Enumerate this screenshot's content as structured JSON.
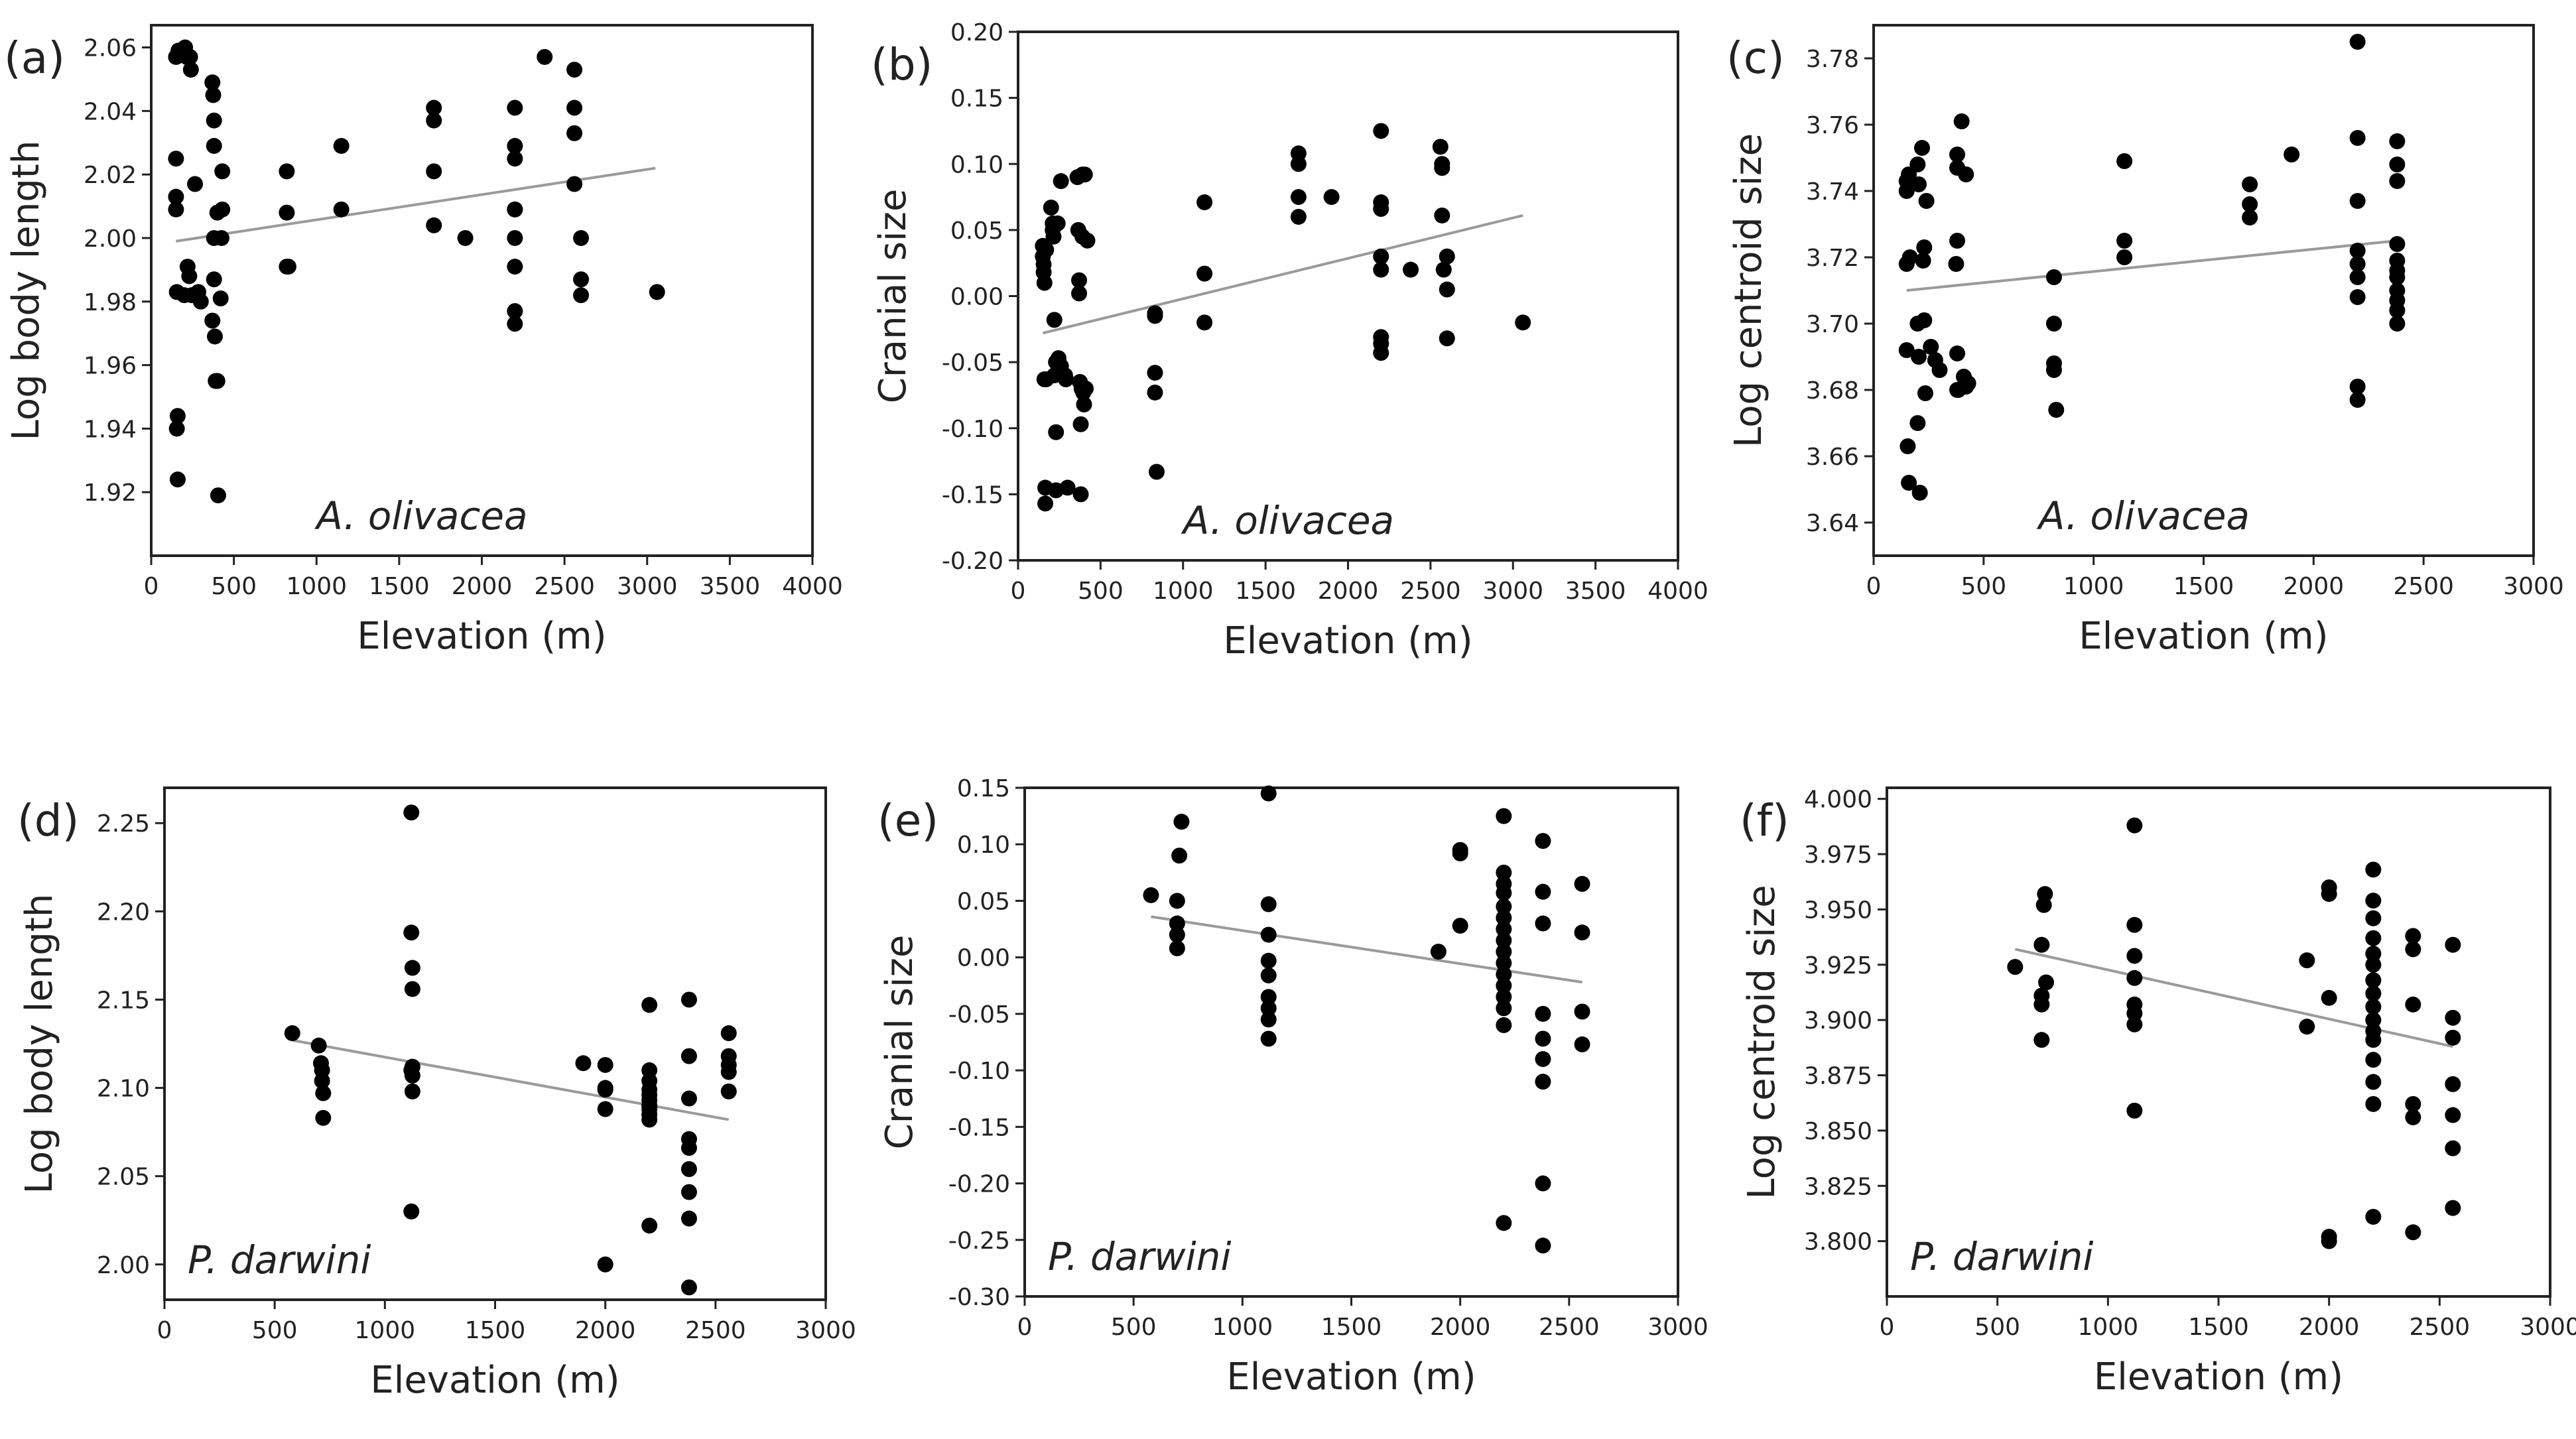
{
  "chart_data": [
    {
      "type": "scatter",
      "panel_label": "(a)",
      "species_label": "A. olivacea",
      "xlabel": "Elevation (m)",
      "ylabel": "Log body length",
      "xlim": [
        0,
        4000
      ],
      "ylim": [
        1.9,
        2.067
      ],
      "xticks": [
        0,
        500,
        1000,
        1500,
        2000,
        2500,
        3000,
        3500,
        4000
      ],
      "xtick_labels": [
        "0",
        "500",
        "1000",
        "1500",
        "2000",
        "2500",
        "3000",
        "3500",
        "4000"
      ],
      "yticks": [
        1.92,
        1.94,
        1.96,
        1.98,
        2.0,
        2.02,
        2.04,
        2.06
      ],
      "ytick_labels": [
        "1.92",
        "1.94",
        "1.96",
        "1.98",
        "2.00",
        "2.02",
        "2.04",
        "2.06"
      ],
      "trend": {
        "x": [
          150,
          3050
        ],
        "y": [
          1.999,
          2.022
        ]
      },
      "x": [
        150,
        150,
        150,
        150,
        155,
        160,
        155,
        160,
        165,
        205,
        215,
        240,
        220,
        230,
        200,
        265,
        235,
        245,
        285,
        300,
        370,
        375,
        380,
        380,
        380,
        380,
        370,
        385,
        390,
        400,
        400,
        405,
        430,
        430,
        425,
        420,
        820,
        820,
        820,
        830,
        1150,
        1150,
        1710,
        1710,
        1710,
        1710,
        1900,
        2200,
        2200,
        2200,
        2200,
        2200,
        2200,
        2200,
        2200,
        2200,
        2380,
        2560,
        2560,
        2560,
        2560,
        2600,
        2600,
        2600,
        3060
      ],
      "y": [
        2.057,
        2.025,
        2.013,
        2.009,
        1.983,
        1.944,
        1.94,
        1.924,
        2.059,
        2.06,
        2.057,
        2.053,
        1.991,
        1.988,
        1.982,
        2.017,
        2.057,
        1.982,
        1.983,
        1.98,
        2.049,
        2.045,
        2.037,
        2.029,
        2.0,
        1.987,
        1.974,
        1.969,
        1.955,
        2.008,
        1.955,
        1.919,
        2.021,
        2.009,
        2.0,
        1.981,
        2.021,
        2.008,
        1.991,
        1.991,
        2.029,
        2.009,
        2.041,
        2.037,
        2.021,
        2.004,
        2.0,
        2.041,
        2.029,
        2.025,
        2.009,
        2.0,
        1.991,
        1.977,
        1.973,
        2.009,
        2.057,
        2.053,
        2.041,
        2.033,
        2.017,
        2.0,
        1.987,
        1.982,
        1.983
      ]
    },
    {
      "type": "scatter",
      "panel_label": "(b)",
      "species_label": "A. olivacea",
      "xlabel": "Elevation (m)",
      "ylabel": "Cranial size",
      "xlim": [
        0,
        4000
      ],
      "ylim": [
        -0.2,
        0.2
      ],
      "xticks": [
        0,
        500,
        1000,
        1500,
        2000,
        2500,
        3000,
        3500,
        4000
      ],
      "xtick_labels": [
        "0",
        "500",
        "1000",
        "1500",
        "2000",
        "2500",
        "3000",
        "3500",
        "4000"
      ],
      "yticks": [
        -0.2,
        -0.15,
        -0.1,
        -0.05,
        0,
        0.05,
        0.1,
        0.15,
        0.2
      ],
      "ytick_labels": [
        "-0.20",
        "-0.15",
        "-0.10",
        "-0.05",
        "0.00",
        "0.05",
        "0.10",
        "0.15",
        "0.20"
      ],
      "trend": {
        "x": [
          150,
          3060
        ],
        "y": [
          -0.028,
          0.061
        ]
      },
      "x": [
        150,
        150,
        155,
        155,
        160,
        160,
        165,
        165,
        170,
        170,
        200,
        210,
        210,
        215,
        220,
        220,
        230,
        230,
        230,
        240,
        245,
        260,
        260,
        285,
        290,
        300,
        360,
        365,
        370,
        370,
        375,
        380,
        380,
        385,
        390,
        390,
        395,
        400,
        405,
        410,
        420,
        830,
        830,
        830,
        830,
        840,
        1130,
        1130,
        1130,
        1700,
        1700,
        1700,
        1700,
        1900,
        2200,
        2200,
        2200,
        2200,
        2200,
        2200,
        2200,
        2200,
        2380,
        2560,
        2570,
        2570,
        2570,
        2580,
        2600,
        2600,
        2600,
        3060
      ],
      "y": [
        0.038,
        0.03,
        0.024,
        0.018,
        0.01,
        -0.063,
        -0.145,
        -0.157,
        0.035,
        -0.063,
        0.067,
        0.055,
        0.05,
        0.045,
        -0.018,
        -0.06,
        -0.05,
        -0.103,
        -0.147,
        0.055,
        -0.047,
        0.087,
        -0.053,
        -0.06,
        -0.063,
        -0.145,
        0.09,
        0.05,
        0.012,
        0.002,
        -0.065,
        -0.097,
        -0.15,
        -0.07,
        0.092,
        0.045,
        -0.073,
        -0.082,
        0.092,
        -0.07,
        0.042,
        -0.013,
        -0.015,
        -0.058,
        -0.073,
        -0.133,
        0.071,
        0.017,
        -0.02,
        0.108,
        0.1,
        0.075,
        0.06,
        0.075,
        0.125,
        0.071,
        0.066,
        0.03,
        0.02,
        -0.031,
        -0.036,
        -0.043,
        0.02,
        0.113,
        0.1,
        0.097,
        0.061,
        0.02,
        0.03,
        0.005,
        -0.032,
        -0.02
      ]
    },
    {
      "type": "scatter",
      "panel_label": "(c)",
      "species_label": "A. olivacea",
      "xlabel": "Elevation (m)",
      "ylabel": "Log centroid size",
      "xlim": [
        0,
        3000
      ],
      "ylim": [
        3.63,
        3.79
      ],
      "xticks": [
        0,
        500,
        1000,
        1500,
        2000,
        2500,
        3000
      ],
      "xtick_labels": [
        "0",
        "500",
        "1000",
        "1500",
        "2000",
        "2500",
        "3000"
      ],
      "yticks": [
        3.64,
        3.66,
        3.68,
        3.7,
        3.72,
        3.74,
        3.76,
        3.78
      ],
      "ytick_labels": [
        "3.64",
        "3.66",
        "3.68",
        "3.70",
        "3.72",
        "3.74",
        "3.76",
        "3.78"
      ],
      "trend": {
        "x": [
          150,
          2380
        ],
        "y": [
          3.71,
          3.725
        ]
      },
      "x": [
        150,
        150,
        150,
        150,
        155,
        160,
        160,
        165,
        200,
        205,
        200,
        205,
        200,
        210,
        220,
        230,
        225,
        230,
        235,
        240,
        260,
        280,
        300,
        380,
        380,
        380,
        375,
        380,
        380,
        385,
        400,
        420,
        410,
        420,
        430,
        820,
        820,
        820,
        820,
        830,
        1140,
        1140,
        1140,
        1710,
        1710,
        1710,
        1900,
        2200,
        2200,
        2200,
        2200,
        2200,
        2200,
        2200,
        2200,
        2380,
        2380,
        2380,
        2380,
        2380,
        2380,
        2380,
        2380,
        2380,
        2380,
        2380
      ],
      "y": [
        3.743,
        3.74,
        3.718,
        3.692,
        3.663,
        3.652,
        3.745,
        3.72,
        3.748,
        3.742,
        3.7,
        3.69,
        3.67,
        3.649,
        3.753,
        3.723,
        3.719,
        3.701,
        3.679,
        3.737,
        3.693,
        3.689,
        3.686,
        3.751,
        3.747,
        3.725,
        3.718,
        3.691,
        3.68,
        3.68,
        3.761,
        3.745,
        3.684,
        3.681,
        3.682,
        3.714,
        3.7,
        3.688,
        3.686,
        3.674,
        3.749,
        3.725,
        3.72,
        3.742,
        3.736,
        3.732,
        3.751,
        3.785,
        3.756,
        3.737,
        3.722,
        3.718,
        3.714,
        3.708,
        3.681,
        3.755,
        3.748,
        3.743,
        3.724,
        3.719,
        3.716,
        3.714,
        3.71,
        3.707,
        3.704,
        3.7
      ],
      "extra_x": [
        2200
      ],
      "extra_y": [
        3.677
      ]
    },
    {
      "type": "scatter",
      "panel_label": "(d)",
      "species_label": "P. darwini",
      "xlabel": "Elevation (m)",
      "ylabel": "Log body length",
      "xlim": [
        0,
        3000
      ],
      "ylim": [
        1.98,
        2.27
      ],
      "xticks": [
        0,
        500,
        1000,
        1500,
        2000,
        2500,
        3000
      ],
      "xtick_labels": [
        "0",
        "500",
        "1000",
        "1500",
        "2000",
        "2500",
        "3000"
      ],
      "yticks": [
        2.0,
        2.05,
        2.1,
        2.15,
        2.2,
        2.25
      ],
      "ytick_labels": [
        "2.00",
        "2.05",
        "2.10",
        "2.15",
        "2.20",
        "2.25"
      ],
      "trend": {
        "x": [
          580,
          2560
        ],
        "y": [
          2.127,
          2.082
        ]
      },
      "x": [
        580,
        700,
        710,
        715,
        715,
        720,
        720,
        1120,
        1120,
        1125,
        1125,
        1125,
        1125,
        1125,
        1120,
        1120,
        1900,
        2000,
        2000,
        2000,
        2000,
        2000,
        2200,
        2200,
        2200,
        2200,
        2200,
        2200,
        2200,
        2200,
        2200,
        2200,
        2200,
        2380,
        2380,
        2380,
        2380,
        2380,
        2380,
        2380,
        2380,
        2380,
        2560,
        2560,
        2560,
        2560,
        2560
      ],
      "y": [
        2.131,
        2.124,
        2.114,
        2.11,
        2.104,
        2.097,
        2.083,
        2.256,
        2.188,
        2.168,
        2.156,
        2.112,
        2.107,
        2.098,
        2.03,
        2.11,
        2.114,
        2.113,
        2.099,
        2.088,
        2.0,
        2.1,
        2.147,
        2.11,
        2.104,
        2.099,
        2.096,
        2.093,
        2.09,
        2.088,
        2.085,
        2.082,
        2.022,
        2.15,
        2.118,
        2.094,
        2.071,
        2.066,
        2.054,
        2.041,
        2.026,
        1.987,
        2.131,
        2.118,
        2.113,
        2.109,
        2.098
      ]
    },
    {
      "type": "scatter",
      "panel_label": "(e)",
      "species_label": "P. darwini",
      "xlabel": "Elevation (m)",
      "ylabel": "Cranial size",
      "xlim": [
        0,
        3000
      ],
      "ylim": [
        -0.3,
        0.15
      ],
      "xticks": [
        0,
        500,
        1000,
        1500,
        2000,
        2500,
        3000
      ],
      "xtick_labels": [
        "0",
        "500",
        "1000",
        "1500",
        "2000",
        "2500",
        "3000"
      ],
      "yticks": [
        -0.3,
        -0.25,
        -0.2,
        -0.15,
        -0.1,
        -0.05,
        0,
        0.05,
        0.1,
        0.15
      ],
      "ytick_labels": [
        "-0.30",
        "-0.25",
        "-0.20",
        "-0.15",
        "-0.10",
        "-0.05",
        "0.00",
        "0.05",
        "0.10",
        "0.15"
      ],
      "trend": {
        "x": [
          580,
          2560
        ],
        "y": [
          0.036,
          -0.022
        ]
      },
      "x": [
        580,
        700,
        700,
        700,
        700,
        710,
        720,
        1120,
        1120,
        1120,
        1120,
        1120,
        1120,
        1120,
        1120,
        1120,
        1900,
        2000,
        2000,
        2000,
        2200,
        2200,
        2200,
        2200,
        2200,
        2200,
        2200,
        2200,
        2200,
        2200,
        2200,
        2200,
        2200,
        2200,
        2200,
        2200,
        2380,
        2380,
        2380,
        2380,
        2380,
        2380,
        2380,
        2380,
        2380,
        2560,
        2560,
        2560,
        2560
      ],
      "y": [
        0.055,
        0.05,
        0.03,
        0.02,
        0.008,
        0.09,
        0.12,
        0.145,
        0.047,
        0.02,
        -0.003,
        -0.016,
        -0.035,
        -0.045,
        -0.055,
        -0.072,
        0.005,
        0.092,
        0.095,
        0.028,
        0.125,
        0.075,
        0.065,
        0.057,
        0.045,
        0.035,
        0.025,
        0.015,
        0.005,
        -0.005,
        -0.015,
        -0.025,
        -0.035,
        -0.045,
        -0.06,
        -0.235,
        0.103,
        0.058,
        0.03,
        -0.072,
        -0.09,
        -0.11,
        -0.2,
        -0.255,
        -0.05,
        0.065,
        0.022,
        -0.048,
        -0.077
      ]
    },
    {
      "type": "scatter",
      "panel_label": "(f)",
      "species_label": "P. darwini",
      "xlabel": "Elevation (m)",
      "ylabel": "Log centroid size",
      "xlim": [
        0,
        3000
      ],
      "ylim": [
        3.775,
        4.005
      ],
      "xticks": [
        0,
        500,
        1000,
        1500,
        2000,
        2500,
        3000
      ],
      "xtick_labels": [
        "0",
        "500",
        "1000",
        "1500",
        "2000",
        "2500",
        "3000"
      ],
      "yticks": [
        3.8,
        3.825,
        3.85,
        3.875,
        3.9,
        3.925,
        3.95,
        3.975,
        4.0
      ],
      "ytick_labels": [
        "3.800",
        "3.825",
        "3.850",
        "3.875",
        "3.900",
        "3.925",
        "3.950",
        "3.975",
        "4.000"
      ],
      "trend": {
        "x": [
          580,
          2560
        ],
        "y": [
          3.932,
          3.888
        ]
      },
      "x": [
        580,
        700,
        700,
        700,
        700,
        710,
        715,
        720,
        1120,
        1120,
        1120,
        1120,
        1120,
        1120,
        1120,
        1120,
        1900,
        1900,
        2000,
        2000,
        2000,
        2000,
        2000,
        2200,
        2200,
        2200,
        2200,
        2200,
        2200,
        2200,
        2200,
        2200,
        2200,
        2200,
        2200,
        2200,
        2200,
        2200,
        2200,
        2380,
        2380,
        2380,
        2380,
        2380,
        2380,
        2560,
        2560,
        2560,
        2560,
        2560,
        2560,
        2560
      ],
      "y": [
        3.924,
        3.934,
        3.911,
        3.907,
        3.891,
        3.952,
        3.957,
        3.917,
        3.988,
        3.943,
        3.929,
        3.919,
        3.907,
        3.903,
        3.898,
        3.859,
        3.927,
        3.897,
        3.96,
        3.957,
        3.91,
        3.802,
        3.8,
        3.968,
        3.954,
        3.946,
        3.937,
        3.93,
        3.925,
        3.918,
        3.912,
        3.906,
        3.9,
        3.891,
        3.882,
        3.862,
        3.811,
        3.872,
        3.895,
        3.938,
        3.932,
        3.907,
        3.862,
        3.856,
        3.804,
        3.934,
        3.901,
        3.892,
        3.871,
        3.857,
        3.842,
        3.815
      ]
    }
  ]
}
